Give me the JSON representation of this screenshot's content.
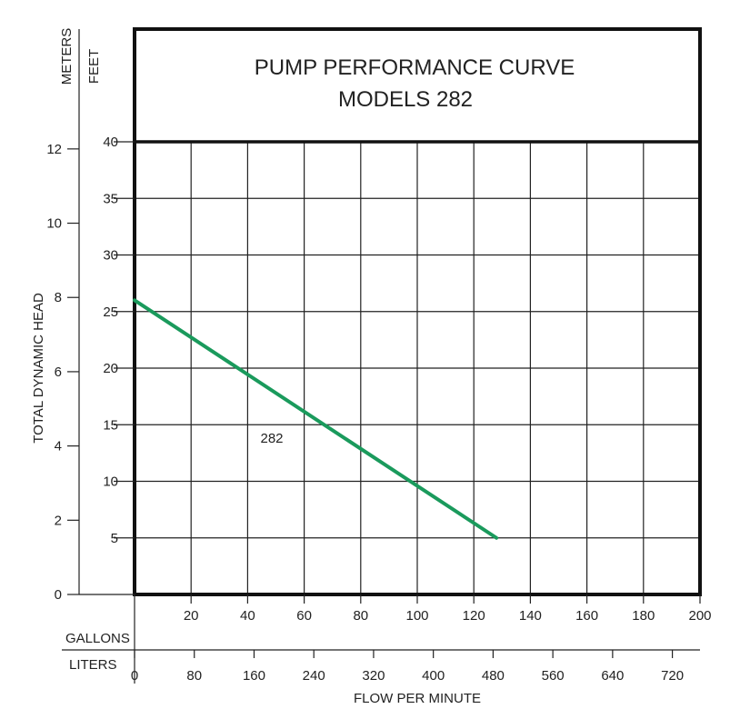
{
  "chart_data": {
    "type": "line",
    "title": "PUMP PERFORMANCE CURVE",
    "subtitle": "MODELS 282",
    "ylabel": "TOTAL DYNAMIC HEAD",
    "xlabel": "FLOW PER MINUTE",
    "y_unit_feet": "FEET",
    "y_unit_meters": "METERS",
    "x_unit_gallons": "GALLONS",
    "x_unit_liters": "LITERS",
    "y_feet_ticks": [
      5,
      10,
      15,
      20,
      25,
      30,
      35,
      40
    ],
    "y_meters_ticks": [
      0,
      2,
      4,
      6,
      8,
      10,
      12
    ],
    "x_gallons_ticks": [
      20,
      40,
      60,
      80,
      100,
      120,
      140,
      160,
      180,
      200
    ],
    "x_liters_ticks": [
      0,
      80,
      160,
      240,
      320,
      400,
      480,
      560,
      640,
      720
    ],
    "xlim_gallons": [
      0,
      200
    ],
    "ylim_feet": [
      0,
      40
    ],
    "grid": true,
    "line_color": "#1a9a5c",
    "series": [
      {
        "name": "282",
        "x": [
          0,
          128
        ],
        "y": [
          26,
          5
        ]
      }
    ]
  }
}
